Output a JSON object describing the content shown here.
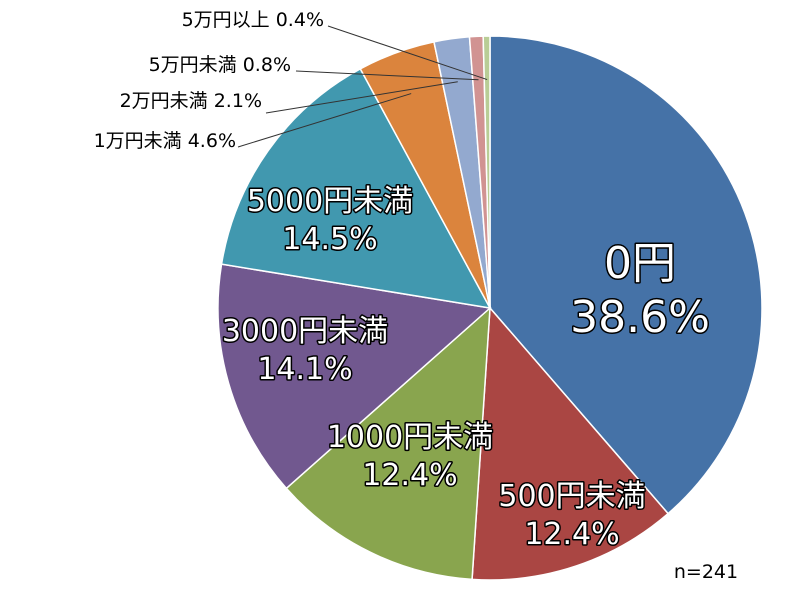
{
  "chart_data": {
    "type": "pie",
    "categories": [
      "0円",
      "500円未満",
      "1000円未満",
      "3000円未満",
      "5000円未満",
      "1万円未満",
      "2万円未満",
      "5万円未満",
      "5万円以上"
    ],
    "values": [
      38.6,
      12.4,
      12.4,
      14.1,
      14.5,
      4.6,
      2.1,
      0.8,
      0.4
    ],
    "value_labels": [
      "38.6%",
      "12.4%",
      "12.4%",
      "14.1%",
      "14.5%",
      "4.6%",
      "2.1%",
      "0.8%",
      "0.4%"
    ],
    "colors": [
      "#4572A7",
      "#AA4643",
      "#89A54E",
      "#71588F",
      "#4198AF",
      "#DB843D",
      "#93A9CF",
      "#D19392",
      "#B9CD96"
    ],
    "start": "12 o'clock",
    "direction": "clockwise",
    "note": "n=241"
  }
}
